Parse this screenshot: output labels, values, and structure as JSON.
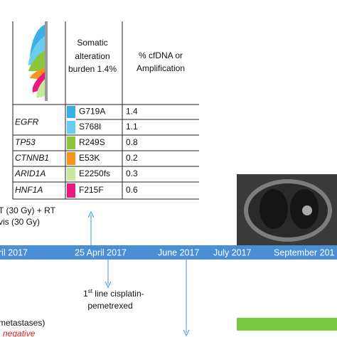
{
  "table": {
    "header": [
      "Somatic",
      "alteration",
      "burden 1.4%",
      "% cfDNA or",
      "Amplification"
    ],
    "rows": [
      {
        "gene": "EGFR",
        "mutations": [
          {
            "name": "G719A",
            "value": 1.4,
            "color": "#3aaee6"
          },
          {
            "name": "S768I",
            "value": 1.1,
            "color": "#68cdef"
          }
        ]
      },
      {
        "gene": "TP53",
        "mutations": [
          {
            "name": "R249S",
            "value": 0.8,
            "color": "#8dc63f"
          }
        ]
      },
      {
        "gene": "CTNNB1",
        "mutations": [
          {
            "name": "E53K",
            "value": 0.2,
            "color": "#f7941d"
          }
        ]
      },
      {
        "gene": "ARID1A",
        "mutations": [
          {
            "name": "E2250fs",
            "value": 0.3,
            "color": "#c8e89c"
          }
        ]
      },
      {
        "gene": "HNF1A",
        "mutations": [
          {
            "name": "F215F",
            "value": 0.6,
            "color": "#e9197e"
          }
        ]
      }
    ]
  },
  "notes": {
    "radiation": [
      "T (30 Gy) + RT",
      "vis (30 Gy)"
    ],
    "metastases": "metastases)",
    "negative": "negative"
  },
  "timeline": {
    "labels": [
      "ril 2017",
      "25 April 2017",
      "June 2017",
      "July 2017",
      "September 201"
    ]
  },
  "treatment": {
    "ordinal": "1",
    "suffix": "st",
    "line1": " line cisplatin-",
    "line2": "pemetrexed"
  }
}
